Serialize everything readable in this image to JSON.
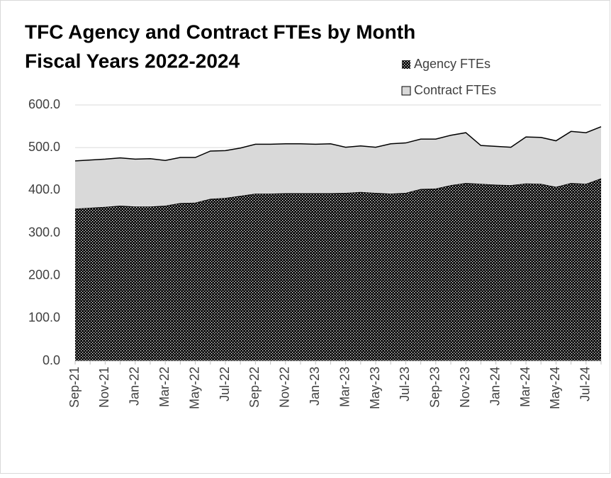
{
  "chart_data": {
    "type": "area",
    "stacked": true,
    "title": "TFC Agency and Contract FTEs by Month",
    "subtitle": "Fiscal Years 2022-2024",
    "categories": [
      "Sep-21",
      null,
      "Nov-21",
      null,
      "Jan-22",
      null,
      "Mar-22",
      null,
      "May-22",
      null,
      "Jul-22",
      null,
      "Sep-22",
      null,
      "Nov-22",
      null,
      "Jan-23",
      null,
      "Mar-23",
      null,
      "May-23",
      null,
      "Jul-23",
      null,
      "Sep-23",
      null,
      "Nov-23",
      null,
      "Jan-24",
      null,
      "Mar-24",
      null,
      "May-24",
      null,
      "Jul-24",
      null
    ],
    "series": [
      {
        "name": "Agency FTEs",
        "color": "#000000",
        "pattern": "crosshatch",
        "values": [
          357,
          359,
          361,
          364,
          362,
          362,
          364,
          370,
          371,
          380,
          382,
          387,
          392,
          392,
          393,
          393,
          393,
          393,
          394,
          396,
          394,
          392,
          394,
          403,
          404,
          412,
          417,
          415,
          413,
          412,
          416,
          415,
          408,
          417,
          415,
          428
        ]
      },
      {
        "name": "Contract FTEs",
        "color": "#d9d9d9",
        "values": [
          112,
          112,
          112,
          112,
          111,
          112,
          106,
          107,
          106,
          112,
          111,
          112,
          116,
          116,
          116,
          116,
          115,
          116,
          107,
          108,
          107,
          117,
          117,
          117,
          116,
          117,
          118,
          90,
          90,
          89,
          109,
          109,
          108,
          121,
          120,
          121
        ]
      }
    ],
    "ylim": [
      0,
      600
    ],
    "yticks": [
      {
        "value": 0,
        "label": "0.0"
      },
      {
        "value": 100,
        "label": "100.0"
      },
      {
        "value": 200,
        "label": "200.0"
      },
      {
        "value": 300,
        "label": "300.0"
      },
      {
        "value": 400,
        "label": "400.0"
      },
      {
        "value": 500,
        "label": "500.0"
      },
      {
        "value": 600,
        "label": "600.0"
      }
    ],
    "grid": true,
    "legend": "top-right"
  }
}
